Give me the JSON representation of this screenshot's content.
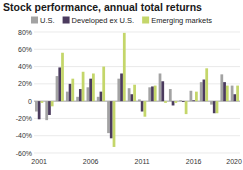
{
  "chart_data": {
    "type": "bar",
    "title": "Stock performance, annual total returns",
    "categories": [
      "2001",
      null,
      null,
      null,
      null,
      "2006",
      null,
      null,
      null,
      null,
      "2011",
      null,
      null,
      null,
      null,
      "2016",
      null,
      null,
      null,
      "2020"
    ],
    "series": [
      {
        "name": "U.S.",
        "color": "#a3a3a3",
        "values": [
          -12,
          -22,
          29,
          11,
          5,
          16,
          5,
          -37,
          26,
          15,
          2,
          16,
          32,
          14,
          1,
          12,
          22,
          -4,
          31,
          18
        ]
      },
      {
        "name": "Developed ex U.S.",
        "color": "#4b3b5e",
        "values": [
          -21,
          -16,
          39,
          20,
          14,
          26,
          11,
          -43,
          32,
          8,
          -12,
          17,
          23,
          -5,
          -1,
          1,
          25,
          -14,
          22,
          8
        ]
      },
      {
        "name": "Emerging markets",
        "color": "#c4d66a",
        "values": [
          -2,
          -6,
          56,
          26,
          34,
          32,
          40,
          -53,
          79,
          19,
          -18,
          18,
          -2,
          -2,
          -15,
          11,
          38,
          -14,
          18,
          18
        ]
      }
    ],
    "ylim": [
      -60,
      80
    ],
    "yticks": [
      {
        "value": -60,
        "label": "-60%"
      },
      {
        "value": -40,
        "label": "-40%"
      },
      {
        "value": -20,
        "label": "-20%"
      },
      0,
      {
        "value": 20,
        "label": "20%"
      },
      {
        "value": 40,
        "label": "40%"
      },
      {
        "value": 60,
        "label": "60%"
      },
      {
        "value": 80,
        "label": "80%"
      }
    ],
    "grid": true,
    "legend": "top"
  }
}
